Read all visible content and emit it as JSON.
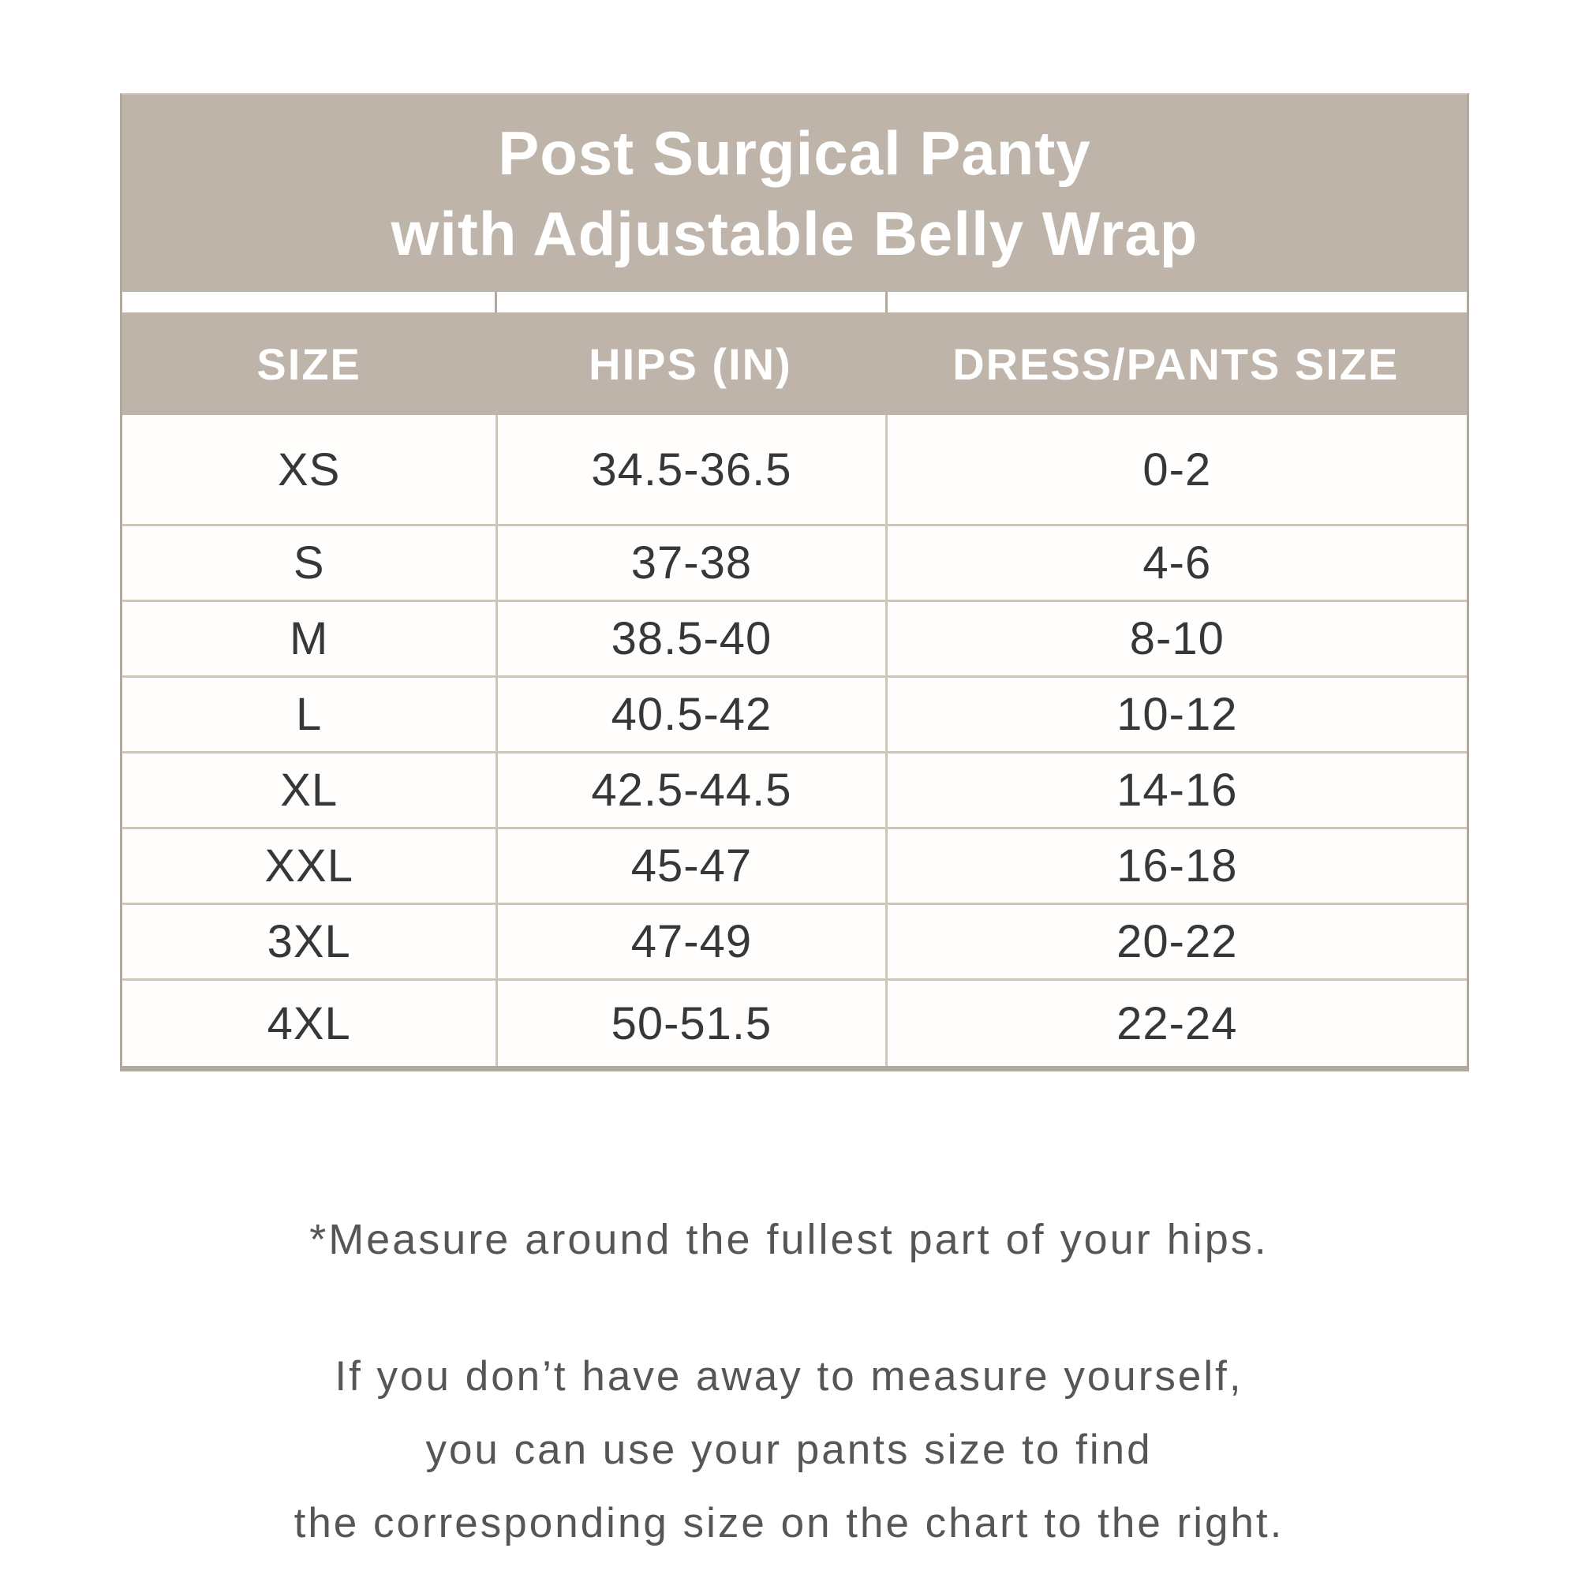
{
  "title": {
    "line1": "Post Surgical Panty",
    "line2": "with Adjustable Belly Wrap"
  },
  "table": {
    "columns": [
      "SIZE",
      "HIPS (IN)",
      "DRESS/PANTS SIZE"
    ],
    "rows": [
      {
        "size": "XS",
        "hips": "34.5-36.5",
        "dress": "0-2"
      },
      {
        "size": "S",
        "hips": "37-38",
        "dress": "4-6"
      },
      {
        "size": "M",
        "hips": "38.5-40",
        "dress": "8-10"
      },
      {
        "size": "L",
        "hips": "40.5-42",
        "dress": "10-12"
      },
      {
        "size": "XL",
        "hips": "42.5-44.5",
        "dress": "14-16"
      },
      {
        "size": "XXL",
        "hips": "45-47",
        "dress": "16-18"
      },
      {
        "size": "3XL",
        "hips": "47-49",
        "dress": "20-22"
      },
      {
        "size": "4XL",
        "hips": "50-51.5",
        "dress": "22-24"
      }
    ]
  },
  "footer": {
    "footnote": "*Measure around the fullest part of your hips.",
    "instruction_line1": "If you don’t have away to measure yourself,",
    "instruction_line2": "you can use your pants size to find",
    "instruction_line3": "the corresponding size on the chart to the right."
  },
  "colors": {
    "header_bg": "#bfb4a9",
    "header_text": "#ffffff",
    "border_outer": "#b2a99d",
    "border_inner": "#cdc6bb",
    "data_text": "#373737",
    "footer_text": "#565656",
    "page_bg": "#ffffff"
  },
  "chart_data": {
    "type": "table",
    "title": "Post Surgical Panty with Adjustable Belly Wrap",
    "columns": [
      "SIZE",
      "HIPS (IN)",
      "DRESS/PANTS SIZE"
    ],
    "rows": [
      [
        "XS",
        "34.5-36.5",
        "0-2"
      ],
      [
        "S",
        "37-38",
        "4-6"
      ],
      [
        "M",
        "38.5-40",
        "8-10"
      ],
      [
        "L",
        "40.5-42",
        "10-12"
      ],
      [
        "XL",
        "42.5-44.5",
        "14-16"
      ],
      [
        "XXL",
        "45-47",
        "16-18"
      ],
      [
        "3XL",
        "47-49",
        "20-22"
      ],
      [
        "4XL",
        "50-51.5",
        "22-24"
      ]
    ],
    "annotations": [
      "*Measure around the fullest part of your hips.",
      "If you don’t have away to measure yourself, you can use your pants size to find the corresponding size on the chart to the right."
    ]
  }
}
